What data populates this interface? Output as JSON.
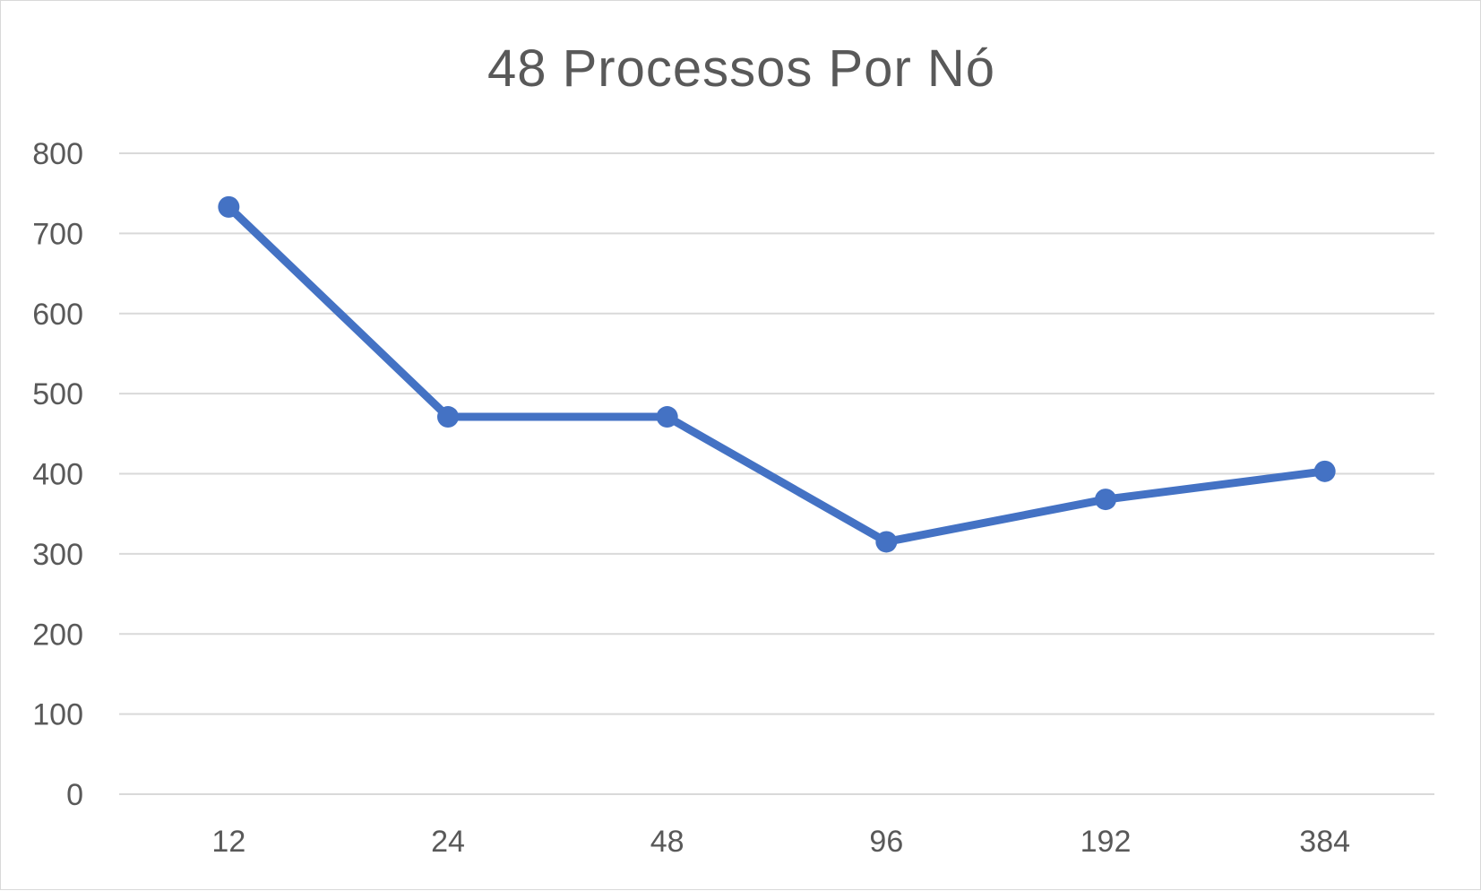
{
  "chart_data": {
    "type": "line",
    "title": "48 Processos Por Nó",
    "xlabel": "",
    "ylabel": "",
    "categories": [
      "12",
      "24",
      "48",
      "96",
      "192",
      "384"
    ],
    "series": [
      {
        "values": [
          733,
          471,
          471,
          315,
          368,
          403
        ],
        "color": "#4472c4",
        "marker": "circle"
      }
    ],
    "ylim": [
      0,
      800
    ],
    "yticks": [
      0,
      100,
      200,
      300,
      400,
      500,
      600,
      700,
      800
    ],
    "grid": true,
    "legend": "none"
  }
}
